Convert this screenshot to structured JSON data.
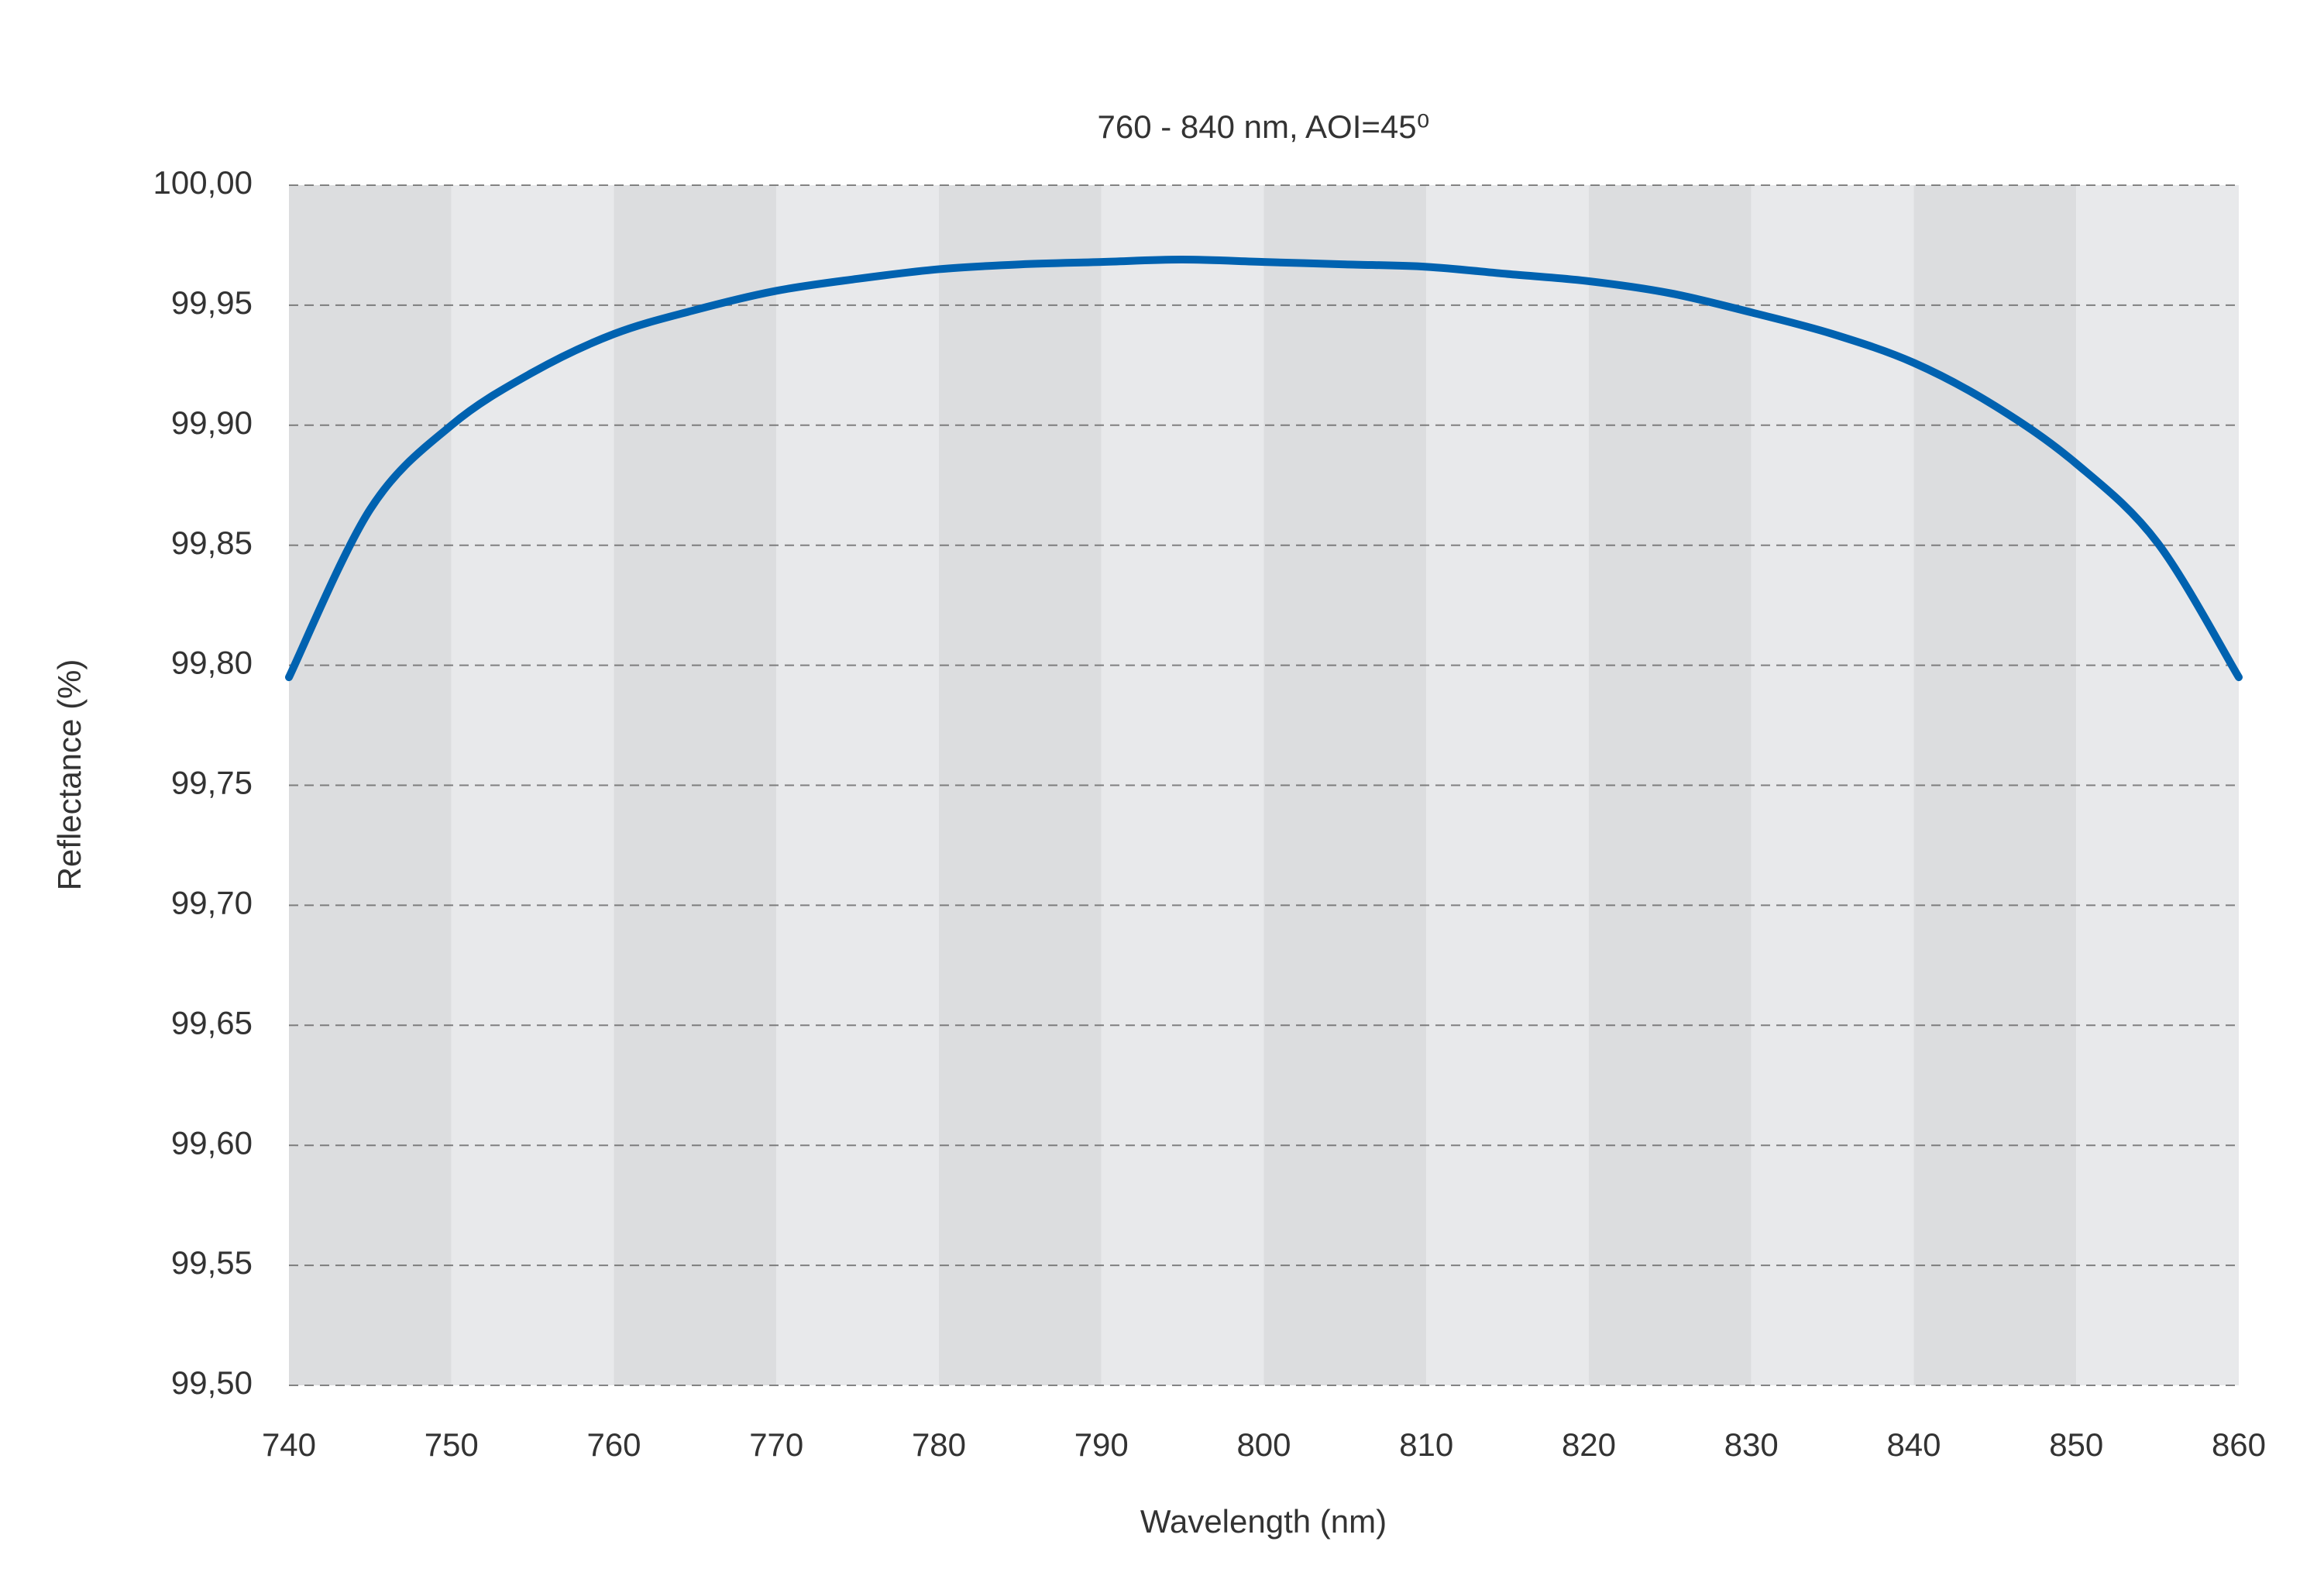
{
  "chart_data": {
    "type": "line",
    "title": "760 - 840 nm, AOI=45⁰",
    "x_label": "Wavelength (nm)",
    "y_label": "Reflectance (%)",
    "x": [
      740,
      745,
      750,
      755,
      760,
      765,
      770,
      775,
      780,
      785,
      790,
      795,
      800,
      805,
      810,
      815,
      820,
      825,
      830,
      835,
      840,
      845,
      850,
      855,
      860
    ],
    "series": [
      {
        "color": "#0062b0",
        "values": [
          99.795,
          99.865,
          99.9,
          99.922,
          99.938,
          99.948,
          99.956,
          99.961,
          99.965,
          99.967,
          99.968,
          99.969,
          99.968,
          99.967,
          99.966,
          99.963,
          99.96,
          99.955,
          99.947,
          99.938,
          99.926,
          99.908,
          99.884,
          99.851,
          99.795
        ]
      }
    ],
    "xlim": [
      740,
      860
    ],
    "xticks": [
      740,
      750,
      760,
      770,
      780,
      790,
      800,
      810,
      820,
      830,
      840,
      850,
      860
    ],
    "ylim": [
      99.5,
      100
    ],
    "yticks": [
      {
        "value": 99.5,
        "label": "99,50"
      },
      {
        "value": 99.55,
        "label": "99,55"
      },
      {
        "value": 99.6,
        "label": "99,60"
      },
      {
        "value": 99.65,
        "label": "99,65"
      },
      {
        "value": 99.7,
        "label": "99,70"
      },
      {
        "value": 99.75,
        "label": "99,75"
      },
      {
        "value": 99.8,
        "label": "99,80"
      },
      {
        "value": 99.85,
        "label": "99,85"
      },
      {
        "value": 99.9,
        "label": "99,90"
      },
      {
        "value": 99.95,
        "label": "99,95"
      },
      {
        "value": 100,
        "label": "100,00"
      }
    ],
    "grid": true,
    "band_colors": [
      "#dcdddf",
      "#e8e9eb"
    ]
  }
}
